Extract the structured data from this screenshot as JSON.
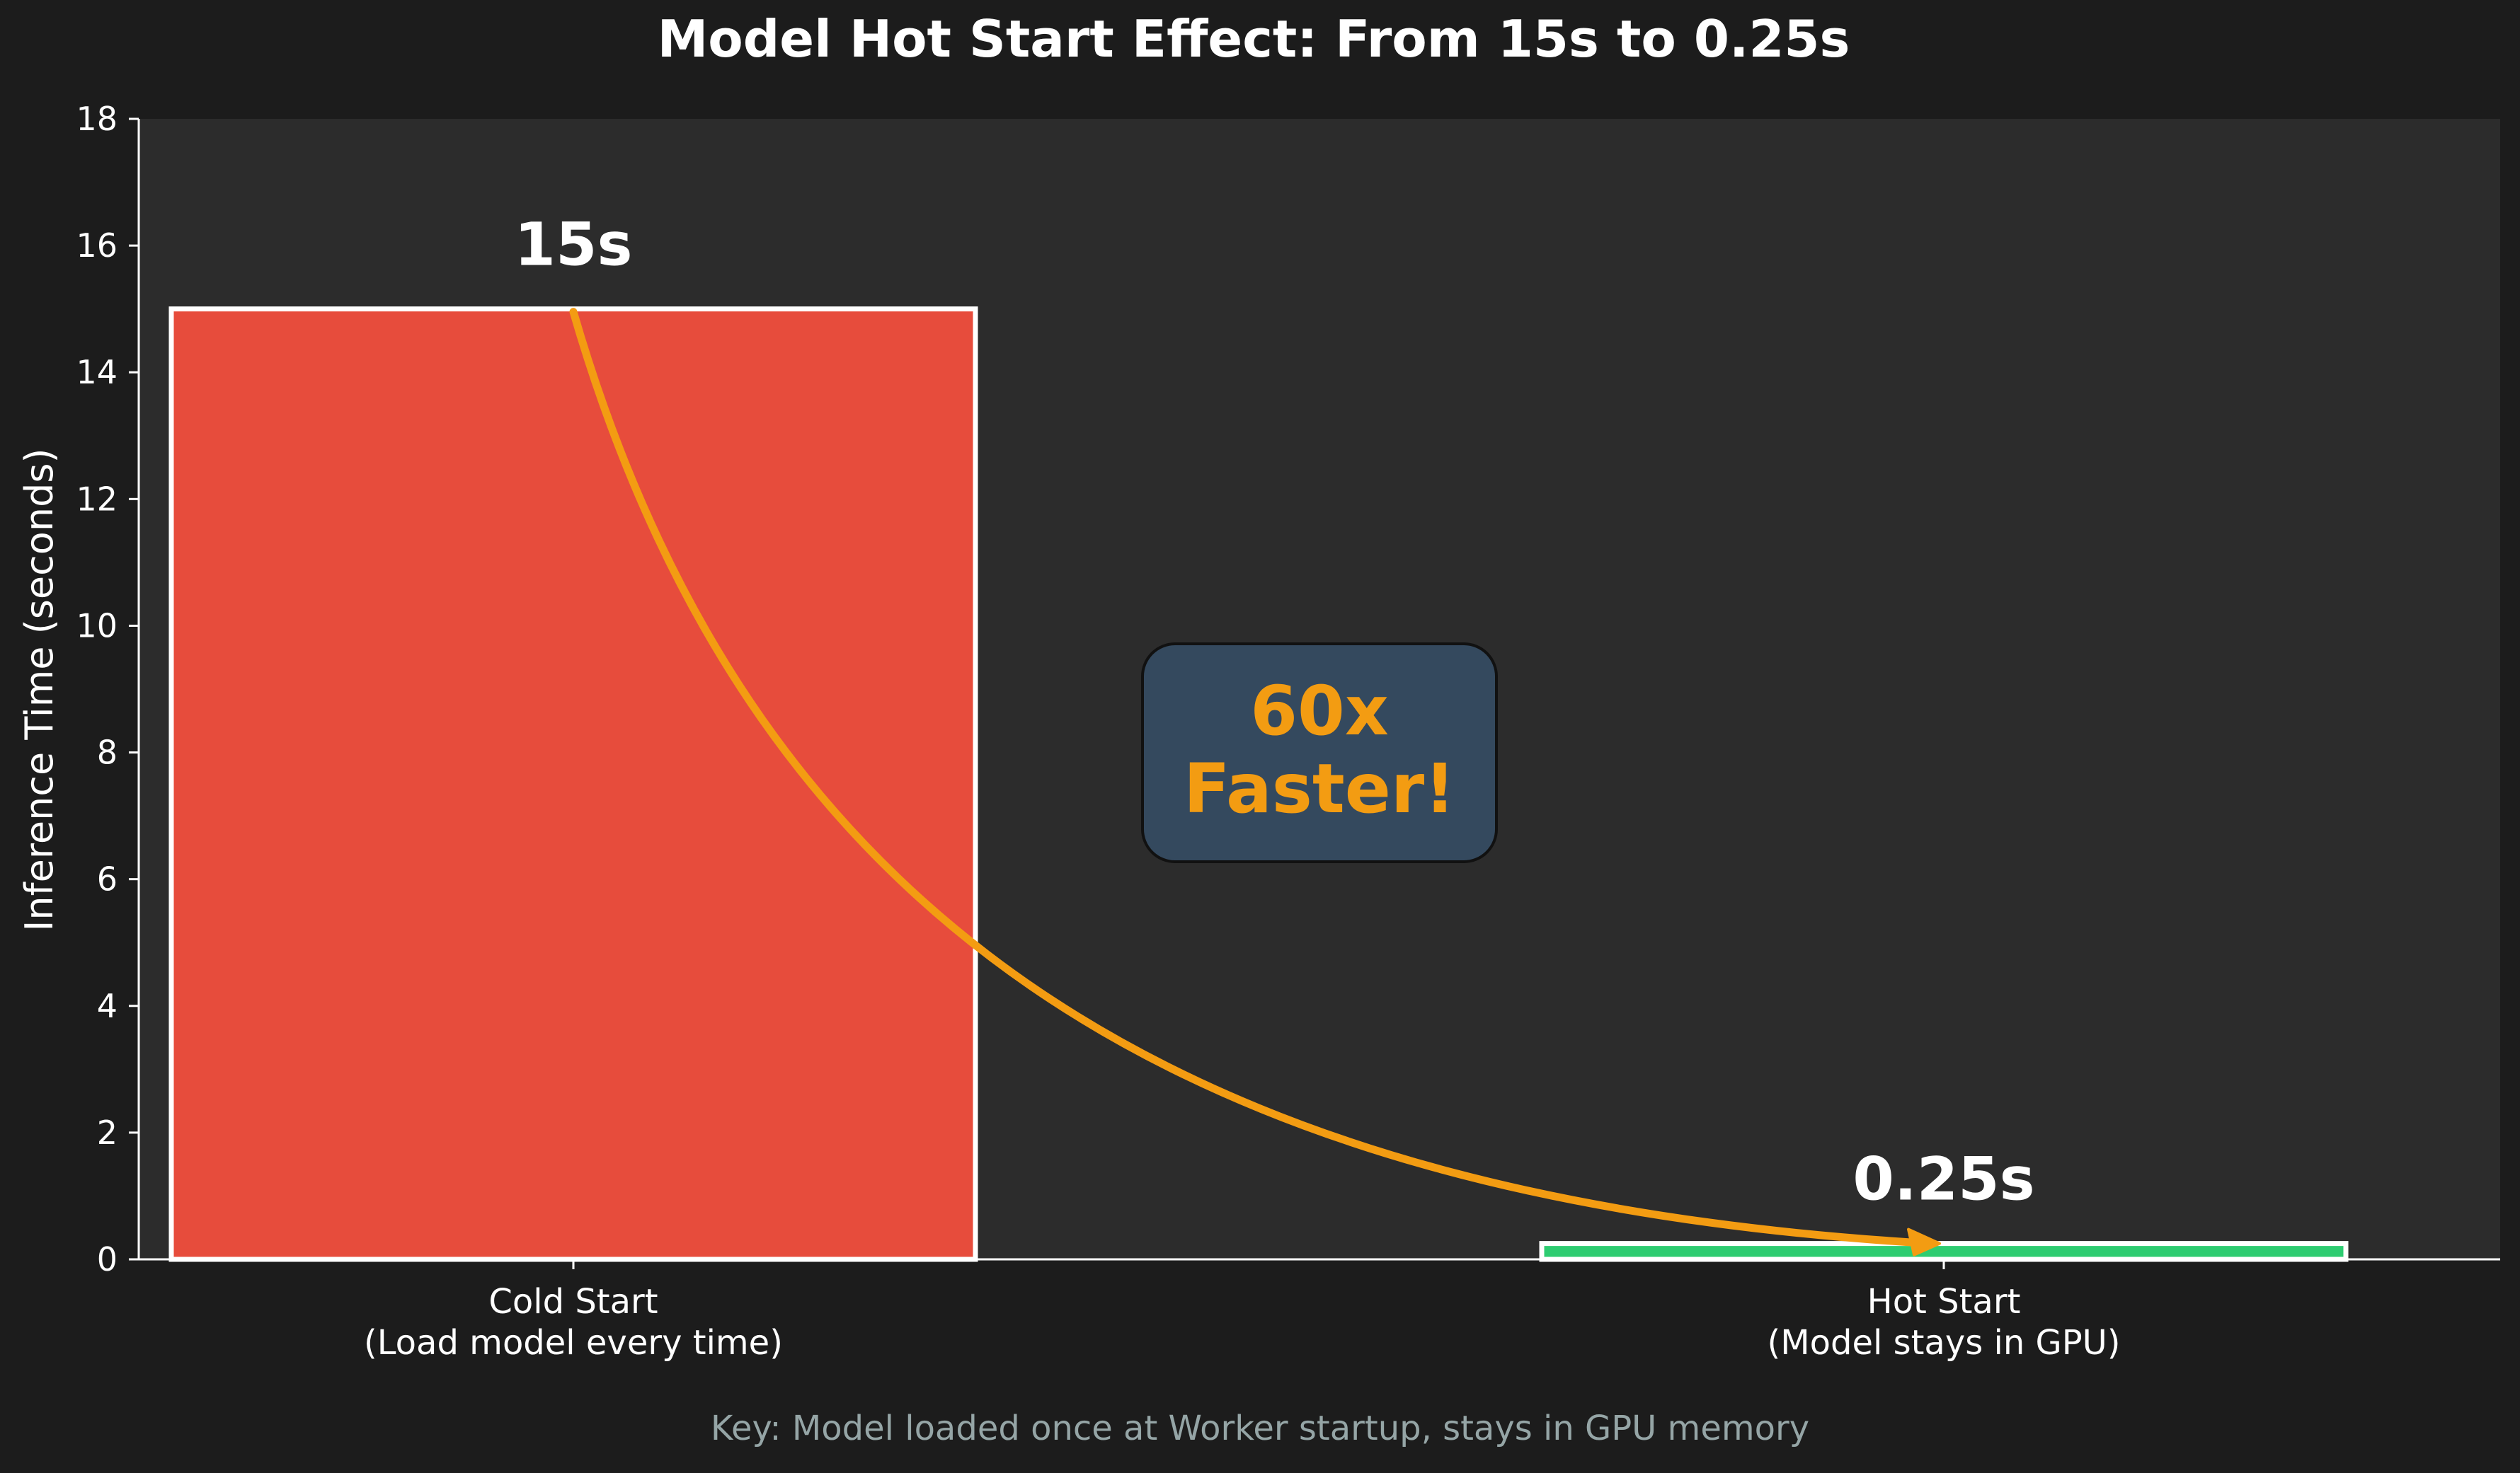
{
  "chart_data": {
    "type": "bar",
    "title": "Model Hot Start Effect: From 15s to 0.25s",
    "ylabel": "Inference Time (seconds)",
    "xlabel": "",
    "ylim": [
      0,
      18
    ],
    "yticks": [
      0,
      2,
      4,
      6,
      8,
      10,
      12,
      14,
      16,
      18
    ],
    "grid": false,
    "categories": [
      [
        "Cold Start",
        "(Load model every time)"
      ],
      [
        "Hot Start",
        "(Model stays in GPU)"
      ]
    ],
    "values": [
      15,
      0.25
    ],
    "value_labels": [
      "15s",
      "0.25s"
    ],
    "bar_colors": [
      "#e74c3c",
      "#2ecc71"
    ],
    "annotation": {
      "lines": [
        "60x",
        "Faster!"
      ],
      "text_color": "#f39c12",
      "box_color": "#34495e",
      "arrow_color": "#f39c12",
      "arrow_from": {
        "x": 0,
        "y": 15
      },
      "arrow_to": {
        "x": 1,
        "y": 0.25
      }
    },
    "footnote": "Key: Model loaded once at Worker startup, stays in GPU memory"
  },
  "colors": {
    "background": "#1c1c1c",
    "plot_background": "#2c2c2c",
    "text": "#ffffff",
    "footnote": "#95a5a6",
    "bar_edge": "#ffffff"
  }
}
